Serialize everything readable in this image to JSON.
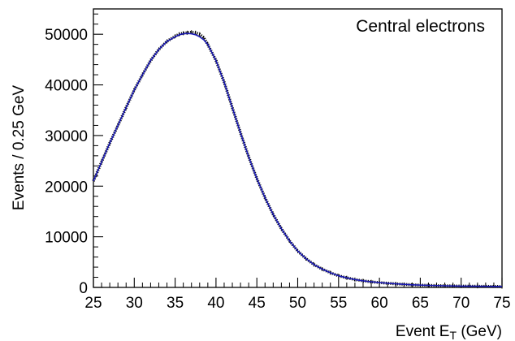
{
  "chart_data": {
    "type": "line",
    "annotation": "Central electrons",
    "xlabel": {
      "prefix": "Event ",
      "symbol": "E",
      "subscript": "T",
      "suffix": " (GeV)"
    },
    "ylabel": "Events / 0.25 GeV",
    "xlim": [
      25,
      75
    ],
    "ylim": [
      0,
      55000
    ],
    "xticks": [
      25,
      30,
      35,
      40,
      45,
      50,
      55,
      60,
      65,
      70,
      75
    ],
    "yticks": [
      0,
      10000,
      20000,
      30000,
      40000,
      50000
    ],
    "grid": false,
    "legend": "none",
    "bin_width": 0.25,
    "series": [
      {
        "role": "data-points",
        "color": "#000000",
        "x": [
          25,
          26,
          27,
          28,
          29,
          30,
          31,
          32,
          33,
          34,
          35,
          35.5,
          36,
          36.5,
          37,
          37.5,
          38,
          38.5,
          39,
          40,
          41,
          42,
          43,
          44,
          45,
          46,
          47,
          48,
          49,
          50,
          51,
          52,
          53,
          54,
          55,
          56,
          57,
          58,
          59,
          60,
          62,
          64,
          66,
          68,
          70,
          72,
          75
        ],
        "y": [
          21000,
          24800,
          28500,
          32000,
          35500,
          39000,
          42000,
          44800,
          47000,
          48600,
          49600,
          50000,
          50200,
          50300,
          50400,
          50300,
          50000,
          49300,
          48000,
          44800,
          40500,
          35500,
          30500,
          25800,
          21500,
          17700,
          14400,
          11600,
          9200,
          7200,
          5700,
          4500,
          3600,
          2900,
          2300,
          1900,
          1550,
          1300,
          1100,
          950,
          700,
          520,
          400,
          320,
          260,
          220,
          170
        ]
      },
      {
        "role": "fit-curve",
        "color": "#1a1ab5",
        "x": [
          25,
          26,
          27,
          28,
          29,
          30,
          31,
          32,
          33,
          34,
          35,
          35.5,
          36,
          36.5,
          37,
          37.5,
          38,
          38.5,
          39,
          40,
          41,
          42,
          43,
          44,
          45,
          46,
          47,
          48,
          49,
          50,
          51,
          52,
          53,
          54,
          55,
          56,
          57,
          58,
          59,
          60,
          62,
          64,
          66,
          68,
          70,
          72,
          75
        ],
        "y": [
          21000,
          24800,
          28500,
          32000,
          35500,
          39000,
          42000,
          44800,
          47000,
          48600,
          49500,
          49900,
          50100,
          50150,
          50100,
          49900,
          49500,
          48900,
          48000,
          44800,
          40500,
          35500,
          30500,
          25800,
          21500,
          17700,
          14400,
          11600,
          9200,
          7200,
          5700,
          4500,
          3600,
          2900,
          2300,
          1900,
          1550,
          1300,
          1100,
          950,
          700,
          520,
          400,
          320,
          260,
          220,
          170
        ]
      }
    ]
  }
}
